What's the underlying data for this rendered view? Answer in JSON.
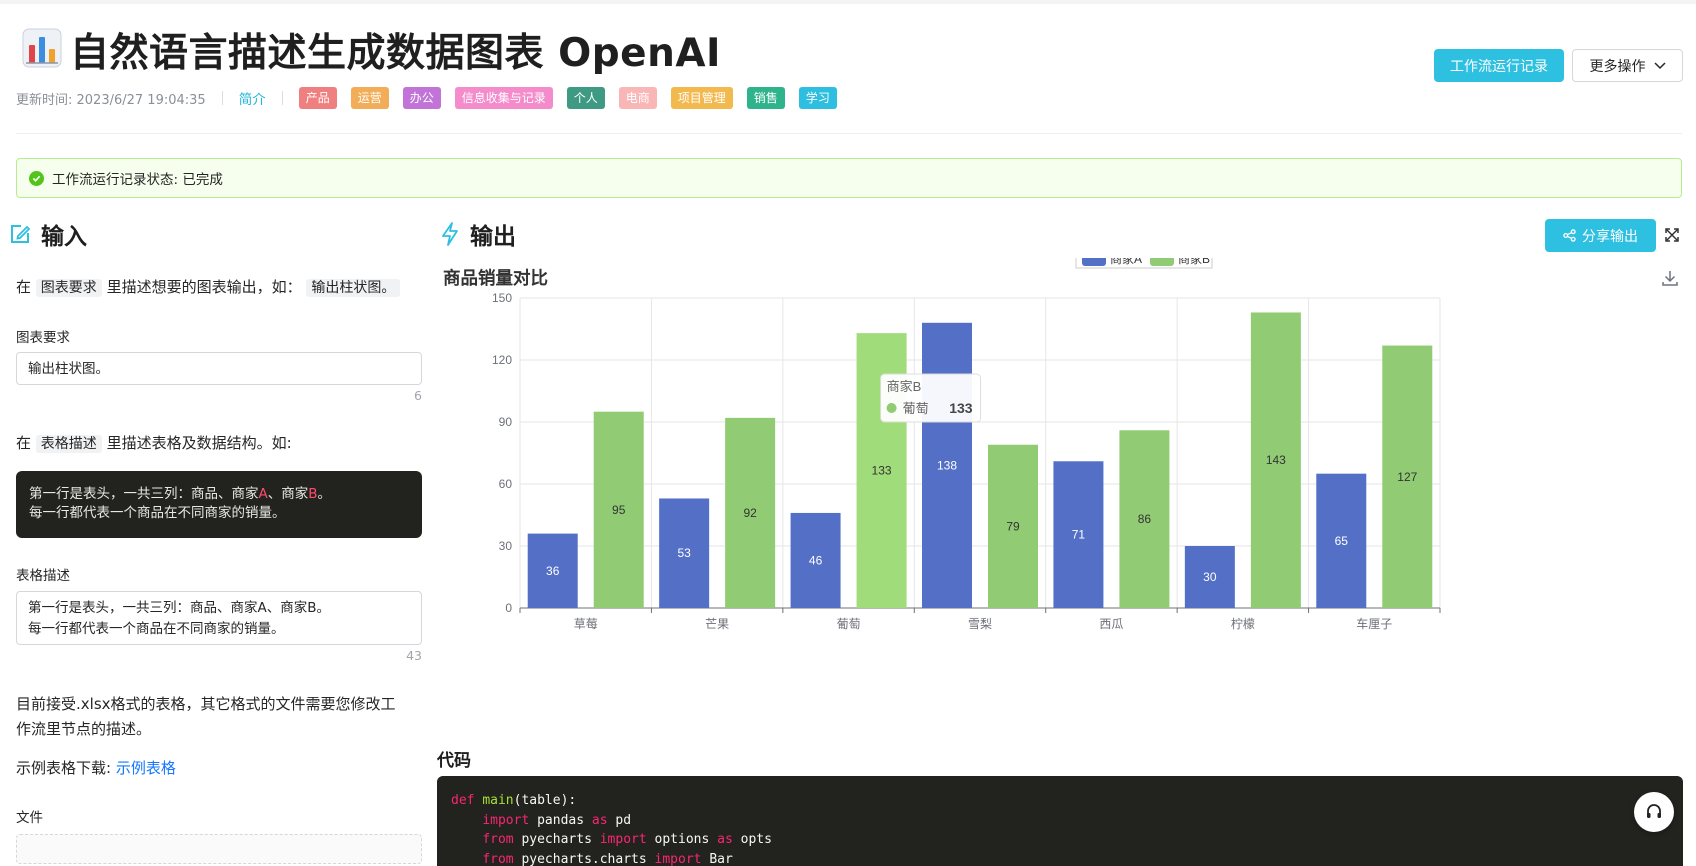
{
  "header": {
    "title": "自然语言描述生成数据图表 OpenAI",
    "updated": "更新时间: 2023/6/27 19:04:35",
    "intro": "简介",
    "tags": [
      {
        "label": "产品",
        "color": "#f07f7f"
      },
      {
        "label": "运营",
        "color": "#f2ad58"
      },
      {
        "label": "办公",
        "color": "#c173d8"
      },
      {
        "label": "信息收集与记录",
        "color": "#f48ccc"
      },
      {
        "label": "个人",
        "color": "#3f9a83"
      },
      {
        "label": "电商",
        "color": "#f9b6b6"
      },
      {
        "label": "项目管理",
        "color": "#f2b94e"
      },
      {
        "label": "销售",
        "color": "#2fb38c"
      },
      {
        "label": "学习",
        "color": "#2ebfe0"
      }
    ],
    "run_record_label": "工作流运行记录",
    "more_actions_label": "更多操作"
  },
  "status": {
    "text": "工作流运行记录状态: 已完成"
  },
  "input": {
    "title": "输入",
    "hint1_pre": "在",
    "hint1_chip": "图表要求",
    "hint1_mid": "里描述想要的图表输出，如：",
    "hint1_example": "输出柱状图。",
    "chart_req_label": "图表要求",
    "chart_req_value": "输出柱状图。",
    "chart_req_count": "6",
    "hint2_pre": "在",
    "hint2_chip": "表格描述",
    "hint2_mid": "里描述表格及数据结构。如:",
    "example_line1_a": "第一行是表头，一共三列：商品、商家",
    "example_line1_b": "A",
    "example_line1_c": "、商家",
    "example_line1_d": "B",
    "example_line1_e": "。",
    "example_line2": "每一行都代表一个商品在不同商家的销量。",
    "table_desc_label": "表格描述",
    "table_desc_line1": "第一行是表头，一共三列：商品、商家A、商家B。",
    "table_desc_line2": "每一行都代表一个商品在不同商家的销量。",
    "table_desc_count": "43",
    "format_note_line1": "目前接受.xlsx格式的表格，其它格式的文件需要您修改工",
    "format_note_line2": "作流里节点的描述。",
    "sample_pre": "示例表格下载:",
    "sample_link": "示例表格",
    "file_label": "文件"
  },
  "output": {
    "title": "输出",
    "share_label": "分享输出",
    "code_title": "代码",
    "code_lines": [
      {
        "indent": "",
        "parts": [
          [
            "kw",
            "def "
          ],
          [
            "fn",
            "main"
          ],
          [
            "",
            "(table):"
          ]
        ]
      },
      {
        "indent": "    ",
        "parts": [
          [
            "kw",
            "import "
          ],
          [
            "",
            "pandas "
          ],
          [
            "kw",
            "as "
          ],
          [
            "",
            "pd"
          ]
        ]
      },
      {
        "indent": "    ",
        "parts": [
          [
            "kw",
            "from "
          ],
          [
            "",
            "pyecharts "
          ],
          [
            "kw",
            "import "
          ],
          [
            "",
            "options "
          ],
          [
            "kw",
            "as "
          ],
          [
            "",
            "opts"
          ]
        ]
      },
      {
        "indent": "    ",
        "parts": [
          [
            "kw",
            "from "
          ],
          [
            "",
            "pyecharts.charts "
          ],
          [
            "kw",
            "import "
          ],
          [
            "",
            "Bar"
          ]
        ]
      }
    ]
  },
  "chart_data": {
    "type": "bar",
    "title": "商品销量对比",
    "categories": [
      "草莓",
      "芒果",
      "葡萄",
      "雪梨",
      "西瓜",
      "柠檬",
      "车厘子"
    ],
    "series": [
      {
        "name": "商家A",
        "color": "#5470c6",
        "values": [
          36,
          53,
          46,
          138,
          71,
          30,
          65
        ]
      },
      {
        "name": "商家B",
        "color": "#91cc75",
        "values": [
          95,
          92,
          133,
          79,
          86,
          143,
          127
        ]
      }
    ],
    "ylim": [
      0,
      150
    ],
    "yticks": [
      0,
      30,
      60,
      90,
      120,
      150
    ],
    "grid": true,
    "legend": "top-center",
    "tooltip": {
      "series": "商家B",
      "category": "葡萄",
      "value": "133"
    }
  }
}
